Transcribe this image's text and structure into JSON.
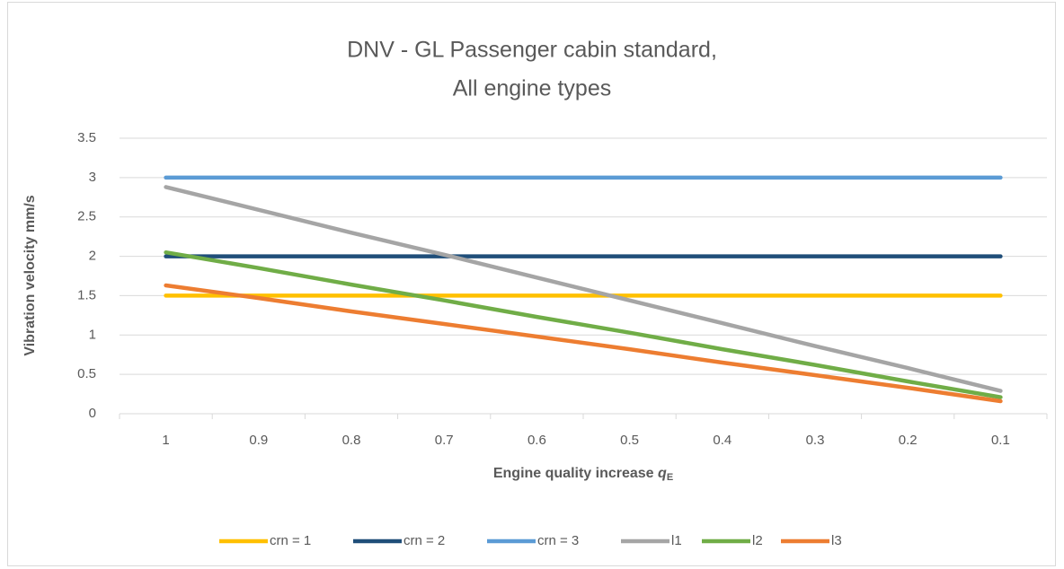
{
  "chart_data": {
    "type": "line",
    "title": [
      "DNV - GL Passenger cabin standard,",
      "All engine types"
    ],
    "ylabel": "Vibration velocity mm/s",
    "xlabel": "Engine quality increase",
    "xlabel_symbol": "q",
    "xlabel_subscript": "E",
    "categories": [
      "1",
      "0.9",
      "0.8",
      "0.7",
      "0.6",
      "0.5",
      "0.4",
      "0.3",
      "0.2",
      "0.1"
    ],
    "ylim": [
      0,
      3.5
    ],
    "yticks": [
      0,
      0.5,
      1,
      1.5,
      2,
      2.5,
      3,
      3.5
    ],
    "grid": true,
    "legend": "bottom",
    "series": [
      {
        "name": "crn = 1",
        "color": "#FFC000",
        "values": [
          1.5,
          1.5,
          1.5,
          1.5,
          1.5,
          1.5,
          1.5,
          1.5,
          1.5,
          1.5
        ]
      },
      {
        "name": "crn = 2",
        "color": "#1F4E79",
        "values": [
          2,
          2,
          2,
          2,
          2,
          2,
          2,
          2,
          2,
          2
        ]
      },
      {
        "name": "crn = 3",
        "color": "#5B9BD5",
        "values": [
          3,
          3,
          3,
          3,
          3,
          3,
          3,
          3,
          3,
          3
        ]
      },
      {
        "name": "l1",
        "color": "#A5A5A5",
        "values": [
          2.88,
          2.59,
          2.3,
          2.02,
          1.73,
          1.44,
          1.15,
          0.86,
          0.58,
          0.29
        ]
      },
      {
        "name": "l2",
        "color": "#70AD47",
        "values": [
          2.05,
          1.85,
          1.64,
          1.44,
          1.23,
          1.03,
          0.82,
          0.62,
          0.41,
          0.21
        ]
      },
      {
        "name": "l3",
        "color": "#ED7D31",
        "values": [
          1.63,
          1.47,
          1.3,
          1.14,
          0.98,
          0.82,
          0.65,
          0.49,
          0.33,
          0.16
        ]
      }
    ]
  }
}
